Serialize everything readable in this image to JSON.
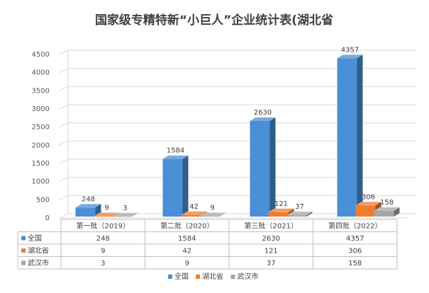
{
  "chart_data": {
    "type": "bar",
    "title": "国家级专精特新“小巨人”企业统计表(湖北省",
    "categories": [
      "第一批（2019）",
      "第二批（2020）",
      "第三批（2021）",
      "第四批（2022）"
    ],
    "series": [
      {
        "name": "全国",
        "values": [
          248,
          1584,
          2630,
          4357
        ],
        "color": "#4a8fd6"
      },
      {
        "name": "湖北省",
        "values": [
          9,
          42,
          121,
          306
        ],
        "color": "#ed7d31"
      },
      {
        "name": "武汉市",
        "values": [
          3,
          9,
          37,
          158
        ],
        "color": "#a5a5a5"
      }
    ],
    "ylim": [
      0,
      4500
    ],
    "yticks": [
      0,
      500,
      1000,
      1500,
      2000,
      2500,
      3000,
      3500,
      4000,
      4500
    ],
    "grid": true,
    "legend": "bottom",
    "data_table": true
  }
}
